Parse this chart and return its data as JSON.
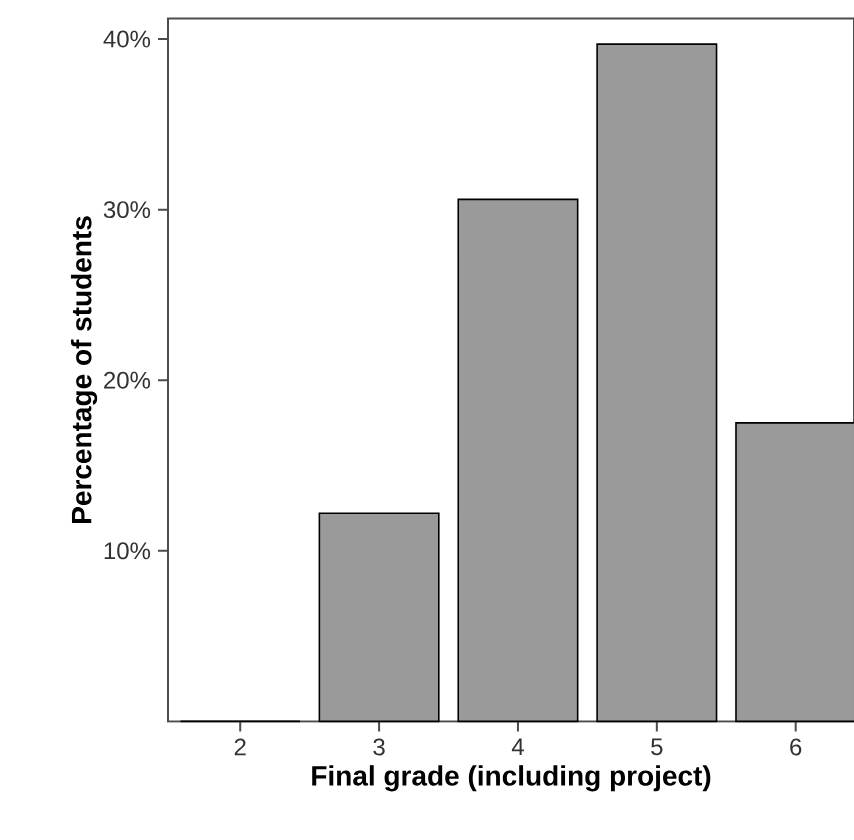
{
  "chart_data": {
    "type": "bar",
    "xlabel": "Final grade (including project)",
    "ylabel": "Percentage of students",
    "categories": [
      "2",
      "3",
      "4",
      "5",
      "6"
    ],
    "values": [
      0,
      12.2,
      30.6,
      39.7,
      17.5
    ],
    "color": "#9a9a9a",
    "ylim": [
      0,
      41.2
    ],
    "yticks": [
      {
        "value": 10,
        "label": "10%"
      },
      {
        "value": 20,
        "label": "20%"
      },
      {
        "value": 30,
        "label": "30%"
      },
      {
        "value": 40,
        "label": "40%"
      }
    ]
  }
}
